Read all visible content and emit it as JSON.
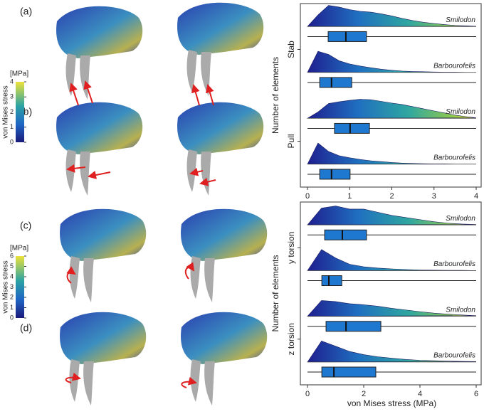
{
  "figure": {
    "panels": [
      "(a)",
      "(b)",
      "(c)",
      "(d)"
    ],
    "colorbars": [
      {
        "unit": "[MPa]",
        "label": "von Mises stress",
        "lim": [
          0,
          4
        ],
        "ticks": [
          0,
          1,
          2,
          3,
          4
        ]
      },
      {
        "unit": "[MPa]",
        "label": "von Mises stress",
        "lim": [
          0,
          6
        ],
        "ticks": [
          0,
          1,
          2,
          3,
          4,
          5,
          6
        ]
      }
    ]
  },
  "chart_data": [
    {
      "type": "raincloud",
      "ylabel": "Number of elements",
      "groups": [
        "Stab",
        "Pull"
      ],
      "xlim": [
        0,
        4
      ],
      "xticks": [
        0,
        1,
        2,
        3,
        4
      ],
      "density_x": [
        0,
        0.25,
        0.5,
        0.75,
        1,
        1.25,
        1.5,
        1.75,
        2,
        2.25,
        2.5,
        2.75,
        3,
        3.25,
        3.5,
        3.75,
        4
      ],
      "series": [
        {
          "name": "Smilodon",
          "group": 0,
          "density": [
            0,
            0.55,
            1,
            0.92,
            0.8,
            0.72,
            0.68,
            0.6,
            0.5,
            0.38,
            0.28,
            0.2,
            0.14,
            0.09,
            0.05,
            0.03,
            0.01
          ],
          "box": {
            "low": 0,
            "q1": 0.49,
            "median": 0.91,
            "q3": 1.4,
            "high": 4
          }
        },
        {
          "name": "Barbourofelis",
          "group": 0,
          "density": [
            0,
            1,
            0.85,
            0.55,
            0.4,
            0.3,
            0.22,
            0.15,
            0.1,
            0.06,
            0.04,
            0.03,
            0.02,
            0.01,
            0.01,
            0,
            0
          ],
          "box": {
            "low": 0,
            "q1": 0.29,
            "median": 0.57,
            "q3": 1.05,
            "high": 4
          }
        },
        {
          "name": "Smilodon",
          "group": 1,
          "density": [
            0,
            0.3,
            0.7,
            0.78,
            0.85,
            0.9,
            0.88,
            0.8,
            0.72,
            0.65,
            0.55,
            0.45,
            0.35,
            0.25,
            0.15,
            0.08,
            0.02
          ],
          "box": {
            "low": 0,
            "q1": 0.64,
            "median": 1.01,
            "q3": 1.47,
            "high": 4
          }
        },
        {
          "name": "Barbourofelis",
          "group": 1,
          "density": [
            0,
            1,
            0.6,
            0.4,
            0.3,
            0.22,
            0.16,
            0.12,
            0.08,
            0.05,
            0.03,
            0.02,
            0.01,
            0.01,
            0,
            0,
            0
          ],
          "box": {
            "low": 0,
            "q1": 0.29,
            "median": 0.57,
            "q3": 1.01,
            "high": 4
          }
        }
      ]
    },
    {
      "type": "raincloud",
      "ylabel": "Number of elements",
      "xlabel": "von Mises stress (MPa)",
      "groups": [
        "y torsion",
        "z torsion"
      ],
      "xlim": [
        0,
        6
      ],
      "xticks": [
        0,
        2,
        4,
        6
      ],
      "density_x": [
        0,
        0.5,
        1,
        1.5,
        2,
        2.5,
        3,
        3.5,
        4,
        4.5,
        5,
        5.5,
        6
      ],
      "series": [
        {
          "name": "Smilodon",
          "group": 0,
          "density": [
            0,
            0.8,
            0.9,
            0.75,
            0.75,
            0.6,
            0.45,
            0.35,
            0.25,
            0.15,
            0.08,
            0.04,
            0.02
          ],
          "box": {
            "low": 0,
            "q1": 0.61,
            "median": 1.24,
            "q3": 2.1,
            "high": 6
          }
        },
        {
          "name": "Barbourofelis",
          "group": 0,
          "density": [
            0,
            1,
            0.6,
            0.3,
            0.18,
            0.12,
            0.08,
            0.05,
            0.03,
            0.02,
            0.01,
            0.01,
            0
          ],
          "box": {
            "low": 0,
            "q1": 0.51,
            "median": 0.76,
            "q3": 1.22,
            "high": 6
          }
        },
        {
          "name": "Smilodon",
          "group": 1,
          "density": [
            0,
            0.75,
            0.7,
            0.6,
            0.55,
            0.48,
            0.38,
            0.3,
            0.22,
            0.15,
            0.1,
            0.06,
            0.03
          ],
          "box": {
            "low": 0,
            "q1": 0.66,
            "median": 1.37,
            "q3": 2.61,
            "high": 6
          }
        },
        {
          "name": "Barbourofelis",
          "group": 1,
          "density": [
            0,
            1,
            0.75,
            0.5,
            0.35,
            0.25,
            0.18,
            0.12,
            0.08,
            0.06,
            0.04,
            0.03,
            0.02
          ],
          "box": {
            "low": 0,
            "q1": 0.51,
            "median": 0.94,
            "q3": 2.43,
            "high": 6
          }
        }
      ]
    }
  ]
}
